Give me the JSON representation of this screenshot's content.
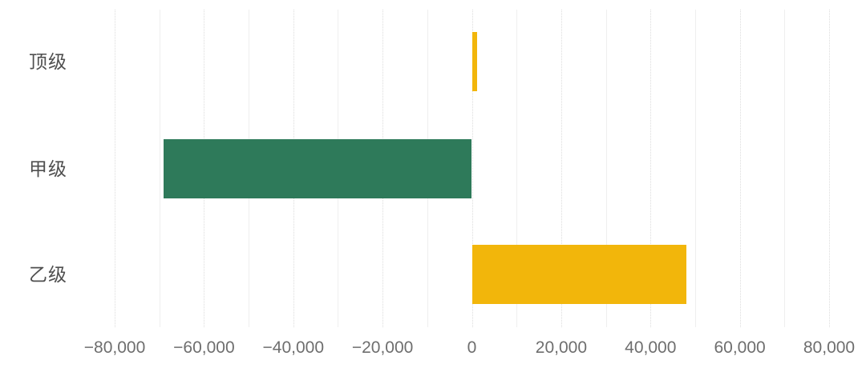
{
  "chart_data": {
    "type": "bar",
    "orientation": "horizontal",
    "title": "",
    "xlabel": "",
    "ylabel": "",
    "categories": [
      "顶级",
      "甲级",
      "乙级"
    ],
    "values": [
      1200,
      -69000,
      48000
    ],
    "bar_colors": [
      "#F2B60B",
      "#2E7A5A",
      "#F2B60B"
    ],
    "xlim": [
      -80000,
      80000
    ],
    "x_minor_step": 10000,
    "x_major_step": 20000,
    "x_ticks": [
      {
        "v": -80000,
        "label": "−80,000"
      },
      {
        "v": -60000,
        "label": "−60,000"
      },
      {
        "v": -40000,
        "label": "−40,000"
      },
      {
        "v": -20000,
        "label": "−20,000"
      },
      {
        "v": 0,
        "label": "0"
      },
      {
        "v": 20000,
        "label": "20,000"
      },
      {
        "v": 40000,
        "label": "40,000"
      },
      {
        "v": 60000,
        "label": "60,000"
      },
      {
        "v": 80000,
        "label": "80,000"
      }
    ],
    "grid": true,
    "legend": false
  },
  "colors": {
    "background": "#ffffff",
    "grid_minor": "#efefef",
    "grid_major": "#dcdcdc",
    "tick_label": "#6e6e6e",
    "category_label": "#4f4f4f",
    "green": "#2E7A5A",
    "amber": "#F2B60B"
  }
}
